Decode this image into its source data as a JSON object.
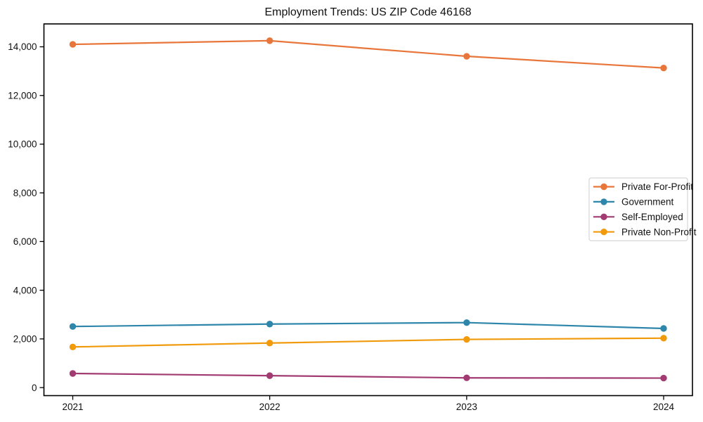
{
  "chart_data": {
    "type": "line",
    "title": "Employment Trends: US ZIP Code 46168",
    "categories": [
      "2021",
      "2022",
      "2023",
      "2024"
    ],
    "series": [
      {
        "name": "Private For-Profit",
        "color": "#E8763B",
        "values": [
          14100,
          14250,
          13610,
          13130
        ]
      },
      {
        "name": "Government",
        "color": "#2E86AB",
        "values": [
          2510,
          2610,
          2670,
          2430
        ]
      },
      {
        "name": "Self-Employed",
        "color": "#A23B72",
        "values": [
          580,
          490,
          400,
          390
        ]
      },
      {
        "name": "Private Non-Profit",
        "color": "#F09A0C",
        "values": [
          1670,
          1830,
          1980,
          2030
        ]
      }
    ],
    "xlabel": "",
    "ylabel": "",
    "ylim": [
      -330,
      14940
    ],
    "yticks": [
      0,
      2000,
      4000,
      6000,
      8000,
      10000,
      12000,
      14000
    ],
    "ytick_labels": [
      "0",
      "2,000",
      "4,000",
      "6,000",
      "8,000",
      "10,000",
      "12,000",
      "14,000"
    ],
    "grid": false,
    "marker": "circle",
    "legend_position": "center right",
    "axis_color": "#000000",
    "legend_border_color": "#cccccc",
    "legend_background": "#ffffff"
  }
}
